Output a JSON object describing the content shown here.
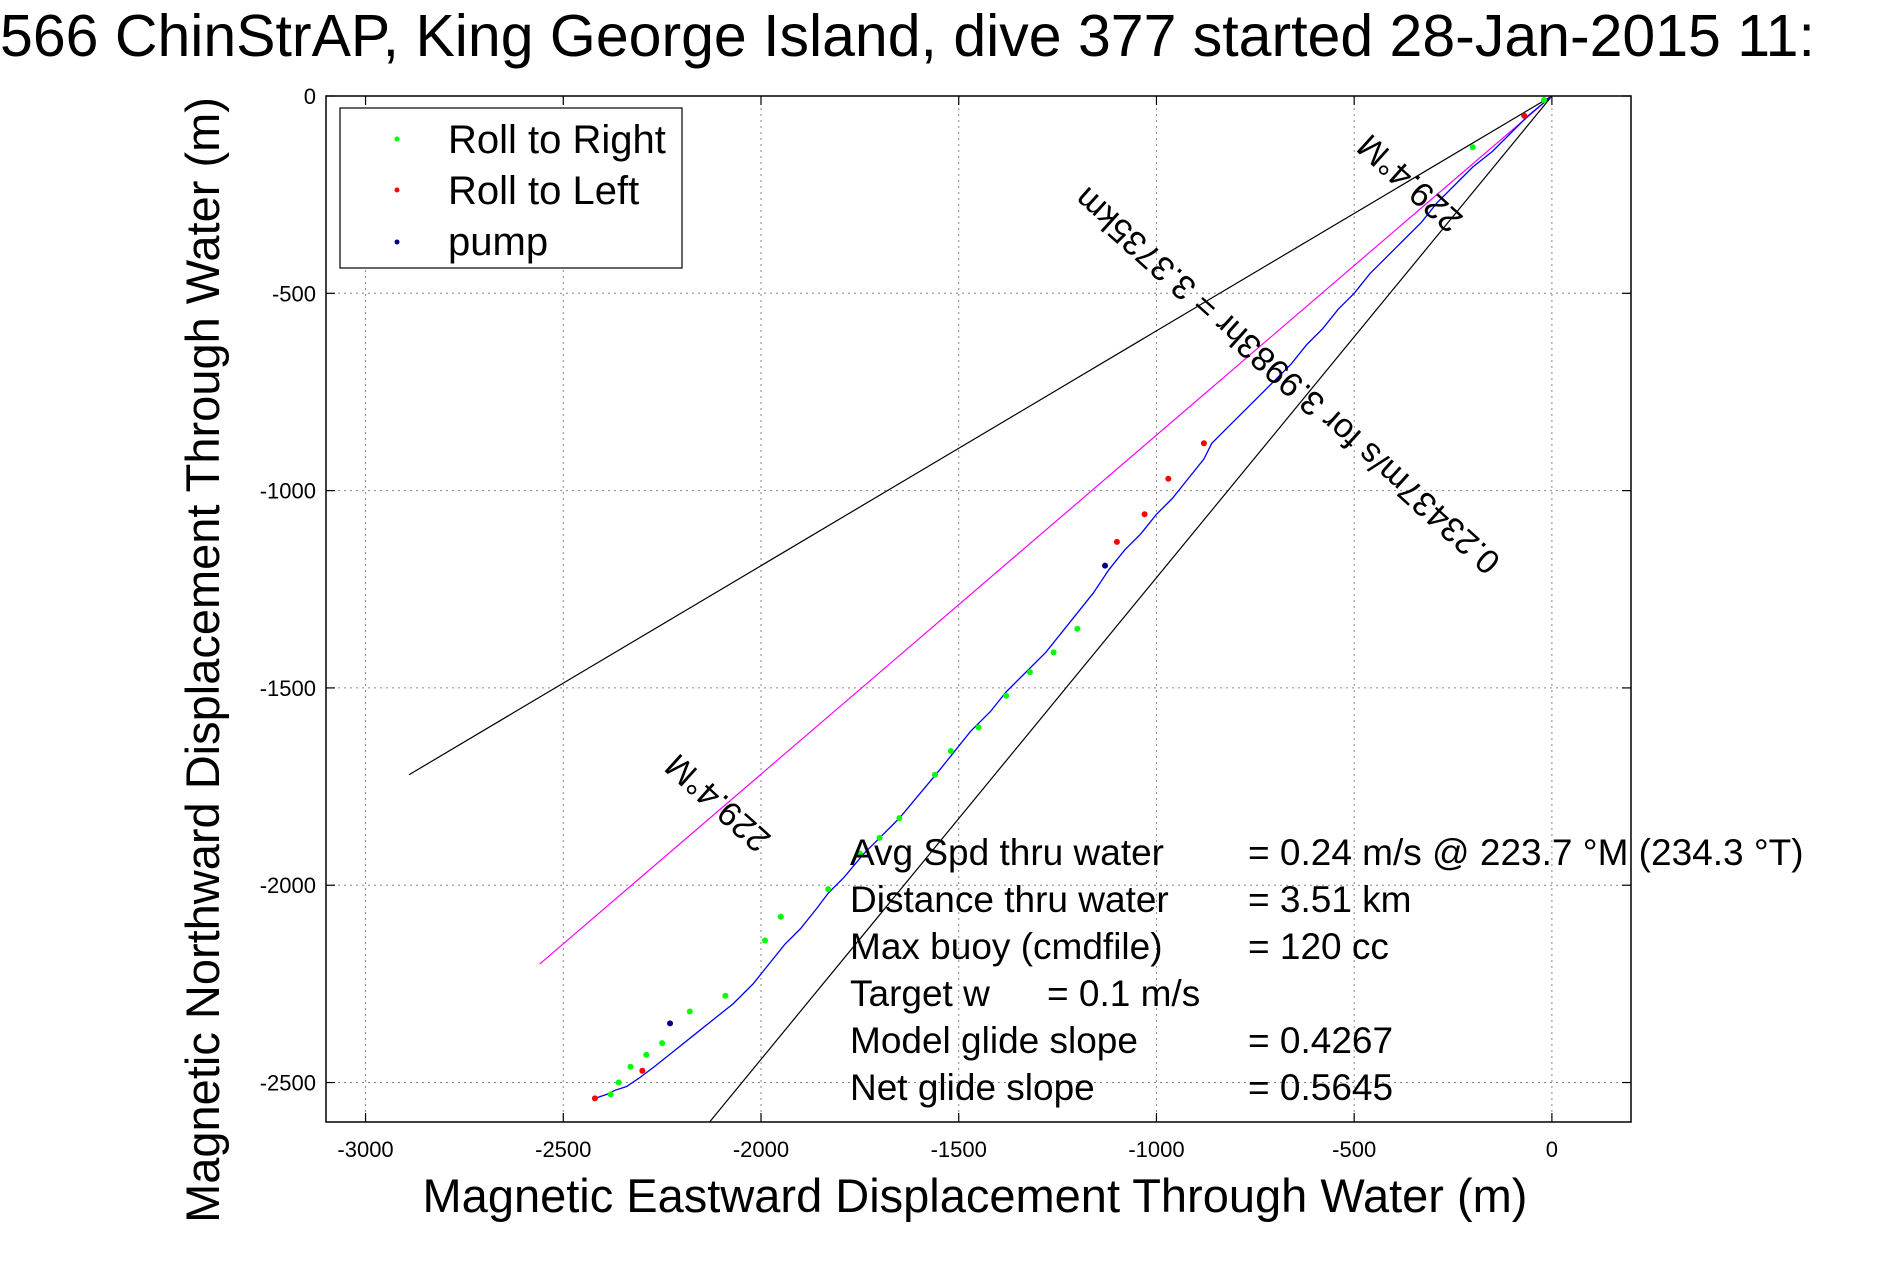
{
  "chart_data": {
    "type": "scatter",
    "title": "566 ChinStrAP, King George Island, dive 377 started 28-Jan-2015 11:",
    "xlabel": "Magnetic Eastward Displacement Through Water (m)",
    "ylabel": "Magnetic Northward Displacement Through Water (m)",
    "xlim": [
      -3100,
      200
    ],
    "ylim": [
      -2600,
      0
    ],
    "xticks": [
      -3000,
      -2500,
      -2000,
      -1500,
      -1000,
      -500,
      0
    ],
    "yticks": [
      -2500,
      -2000,
      -1500,
      -1000,
      -500,
      0
    ],
    "grid": true,
    "legend": {
      "placement": "top-left",
      "entries": [
        {
          "label": "Roll to Right",
          "color": "#00ff00"
        },
        {
          "label": "Roll to Left",
          "color": "#ff0000"
        },
        {
          "label": "pump",
          "color": "#000080"
        }
      ]
    },
    "track": {
      "name": "track",
      "color": "#0000ff",
      "x": [
        0,
        -60,
        -100,
        -150,
        -200,
        -250,
        -290,
        -330,
        -380,
        -420,
        -460,
        -500,
        -540,
        -580,
        -620,
        -660,
        -700,
        -740,
        -780,
        -820,
        -860,
        -880,
        -920,
        -960,
        -1000,
        -1040,
        -1080,
        -1120,
        -1160,
        -1200,
        -1240,
        -1280,
        -1330,
        -1380,
        -1420,
        -1470,
        -1510,
        -1550,
        -1600,
        -1650,
        -1690,
        -1740,
        -1790,
        -1830,
        -1860,
        -1900,
        -1940,
        -1980,
        -2020,
        -2070,
        -2120,
        -2170,
        -2220,
        -2270,
        -2310,
        -2340,
        -2370,
        -2390,
        -2420
      ],
      "y": [
        0,
        -50,
        -90,
        -140,
        -180,
        -230,
        -270,
        -320,
        -370,
        -410,
        -450,
        -500,
        -540,
        -590,
        -630,
        -680,
        -720,
        -760,
        -800,
        -840,
        -880,
        -920,
        -970,
        -1020,
        -1060,
        -1110,
        -1150,
        -1200,
        -1260,
        -1310,
        -1360,
        -1410,
        -1460,
        -1510,
        -1560,
        -1610,
        -1660,
        -1710,
        -1770,
        -1830,
        -1870,
        -1920,
        -1980,
        -2020,
        -2060,
        -2110,
        -2150,
        -2200,
        -2250,
        -2300,
        -2340,
        -2380,
        -2420,
        -2460,
        -2490,
        -2510,
        -2520,
        -2530,
        -2540
      ]
    },
    "series": [
      {
        "name": "Roll to Right",
        "color": "#00ff00",
        "x": [
          -20,
          -200,
          -1200,
          -1260,
          -1320,
          -1380,
          -1450,
          -1520,
          -1560,
          -1650,
          -1700,
          -1750,
          -1830,
          -1950,
          -1990,
          -2090,
          -2180,
          -2250,
          -2290,
          -2330,
          -2360,
          -2380
        ],
        "y": [
          -10,
          -130,
          -1350,
          -1410,
          -1460,
          -1520,
          -1600,
          -1660,
          -1720,
          -1830,
          -1880,
          -1920,
          -2010,
          -2080,
          -2140,
          -2280,
          -2320,
          -2400,
          -2430,
          -2460,
          -2500,
          -2530
        ]
      },
      {
        "name": "Roll to Left",
        "color": "#ff0000",
        "x": [
          -70,
          -880,
          -970,
          -1030,
          -1100,
          -2300,
          -2420
        ],
        "y": [
          -50,
          -880,
          -970,
          -1060,
          -1130,
          -2470,
          -2540
        ]
      },
      {
        "name": "pump",
        "color": "#000080",
        "x": [
          -1130,
          -2230
        ],
        "y": [
          -1190,
          -2350
        ]
      }
    ],
    "reference_lines": [
      {
        "color": "#000000",
        "x": [
          0,
          -2890
        ],
        "y": [
          0,
          -1720
        ]
      },
      {
        "color": "#000000",
        "x": [
          0,
          -2130
        ],
        "y": [
          0,
          -2600
        ]
      },
      {
        "color": "#ff00ff",
        "x": [
          0,
          -2560
        ],
        "y": [
          0,
          -2200
        ]
      }
    ],
    "annotations": [
      {
        "text": "229.4°M",
        "x": -340,
        "y": -200,
        "angle": 222
      },
      {
        "text": "0.23437m/s for 3.9983hr = 3.3735km",
        "x": -650,
        "y": -700,
        "angle": 222
      },
      {
        "text": "229.4°M",
        "x": -2090,
        "y": -1770,
        "angle": 222
      }
    ],
    "stats": {
      "labels": [
        "Avg Spd thru water",
        "Distance thru water",
        "Max buoy (cmdfile)",
        "Target w",
        "Model glide slope",
        "Net glide slope"
      ],
      "values": [
        "=  0.24 m/s @ 223.7 °M (234.3 °T)",
        "=  3.51 km",
        "= 120 cc",
        "= 0.1 m/s",
        "= 0.4267",
        "= 0.5645"
      ]
    }
  }
}
